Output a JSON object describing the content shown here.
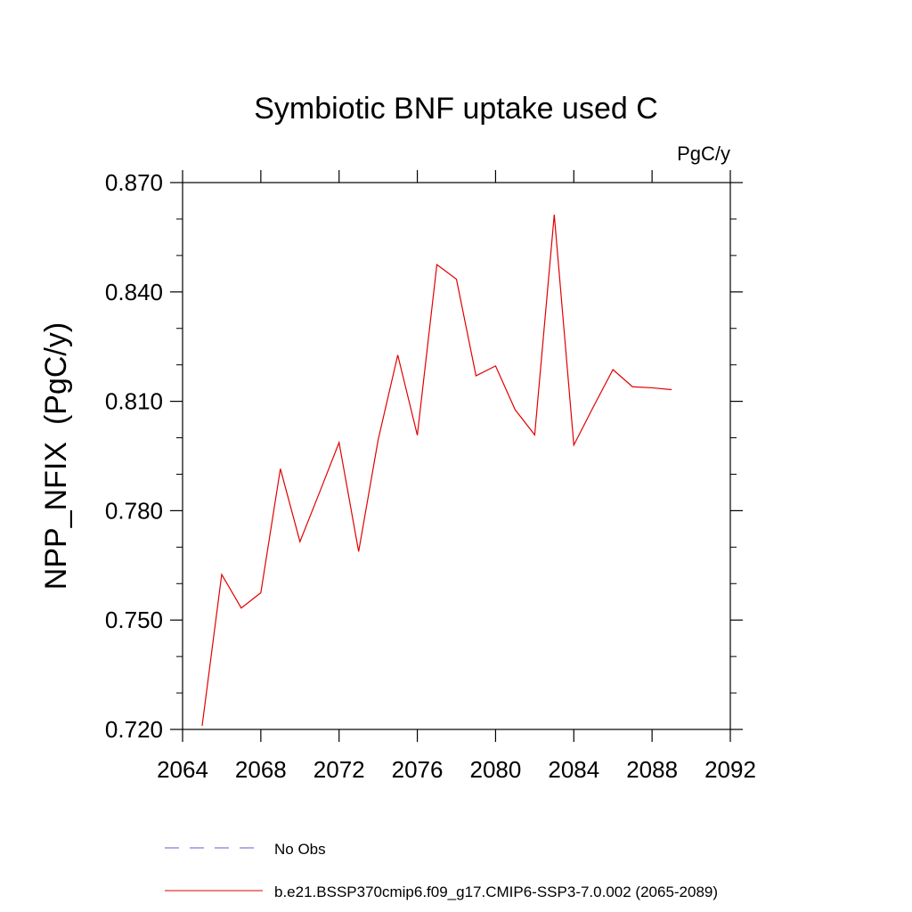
{
  "chart_data": {
    "type": "line",
    "title": "Symbiotic BNF uptake used C",
    "units": "PgC/y",
    "ylabel": "NPP_NFIX  (PgC/y)",
    "xlabel": "",
    "xlim": [
      2064,
      2092
    ],
    "ylim": [
      0.72,
      0.87
    ],
    "xticks": [
      2064,
      2068,
      2072,
      2076,
      2080,
      2084,
      2088,
      2092
    ],
    "xtick_labels": [
      "2064",
      "2068",
      "2072",
      "2076",
      "2080",
      "2084",
      "2088",
      "2092"
    ],
    "yticks": [
      0.72,
      0.75,
      0.78,
      0.81,
      0.84,
      0.87
    ],
    "ytick_labels": [
      "0.720",
      "0.750",
      "0.780",
      "0.810",
      "0.840",
      "0.870"
    ],
    "grid": false,
    "legend_position": "bottom",
    "series": [
      {
        "name": "b.e21.BSSP370cmip6.f09_g17.CMIP6-SSP3-7.0.002 (2065-2089)",
        "color": "#e00000",
        "style": "solid",
        "x": [
          2065,
          2066,
          2067,
          2068,
          2069,
          2070,
          2071,
          2072,
          2073,
          2074,
          2075,
          2076,
          2077,
          2078,
          2079,
          2080,
          2081,
          2082,
          2083,
          2084,
          2085,
          2086,
          2087,
          2088,
          2089
        ],
        "y": [
          0.721,
          0.7625,
          0.7533,
          0.7575,
          0.7915,
          0.7715,
          0.785,
          0.7987,
          0.7688,
          0.7995,
          0.8227,
          0.8007,
          0.8475,
          0.8435,
          0.817,
          0.8197,
          0.8077,
          0.8008,
          0.8612,
          0.798,
          0.8085,
          0.8187,
          0.814,
          0.8137,
          0.8132
        ]
      }
    ],
    "legend": [
      {
        "label": "No Obs",
        "color": "#6a5acd",
        "style": "dashed"
      },
      {
        "label": "b.e21.BSSP370cmip6.f09_g17.CMIP6-SSP3-7.0.002 (2065-2089)",
        "color": "#e00000",
        "style": "solid"
      }
    ]
  }
}
